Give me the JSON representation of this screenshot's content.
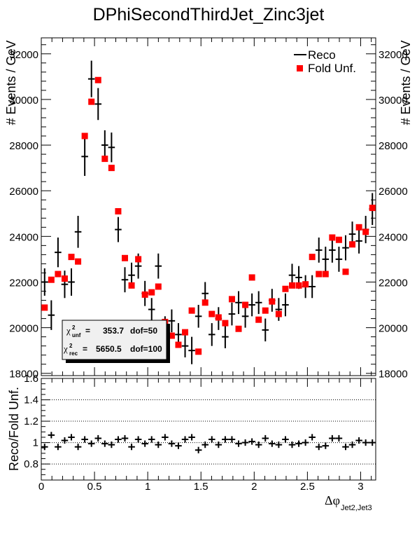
{
  "chart_data": [
    {
      "type": "scatter",
      "title": "DPhiSecondThirdJet_Zinc3jet",
      "ylabel": "# Events / GeV",
      "ylabel_right": "# Events / GeV",
      "xlim": [
        0,
        3.1416
      ],
      "ylim": [
        17900,
        32700
      ],
      "x_ticks": [
        "0",
        "0.5",
        "1",
        "1.5",
        "2",
        "2.5",
        "3"
      ],
      "y_ticks": [
        "18000",
        "20000",
        "22000",
        "24000",
        "26000",
        "28000",
        "30000",
        "32000"
      ],
      "legend": {
        "position": "top-right",
        "entries": [
          "Reco",
          "Fold Unf."
        ]
      },
      "series": [
        {
          "name": "Reco",
          "style": "points-with-error-bars",
          "color": "#000000",
          "y": [
            22000,
            20550,
            23300,
            21900,
            22000,
            24200,
            27500,
            30900,
            29800,
            28000,
            27900,
            24300,
            22100,
            22300,
            22700,
            21500,
            20800,
            22700,
            20000,
            20300,
            19700,
            19200,
            19000,
            20500,
            21500,
            19700,
            20400,
            19600,
            20600,
            21100,
            20500,
            21000,
            21100,
            19900,
            21200,
            20800,
            21000,
            22300,
            22200,
            21800,
            21800,
            23400,
            23000,
            23400,
            23000,
            23500,
            24100,
            23800,
            24300,
            25200
          ],
          "err": [
            600,
            650,
            650,
            600,
            600,
            700,
            850,
            800,
            700,
            650,
            650,
            550,
            550,
            550,
            550,
            550,
            500,
            550,
            500,
            500,
            500,
            500,
            600,
            500,
            500,
            500,
            500,
            500,
            500,
            500,
            500,
            500,
            500,
            500,
            500,
            500,
            500,
            500,
            500,
            500,
            500,
            550,
            550,
            550,
            550,
            550,
            550,
            550,
            600,
            700
          ]
        },
        {
          "name": "Fold Unf.",
          "style": "red-squares",
          "color": "#ff0000",
          "y": [
            20880,
            22100,
            22350,
            22150,
            23100,
            22900,
            28400,
            29900,
            30850,
            27400,
            27000,
            25100,
            23050,
            21850,
            23000,
            21450,
            21550,
            21800,
            20250,
            19650,
            19250,
            19800,
            20750,
            18950,
            21100,
            20600,
            20450,
            20200,
            21250,
            19950,
            21000,
            22200,
            20350,
            20750,
            21150,
            20600,
            21700,
            21850,
            21850,
            21900,
            23100,
            22350,
            22350,
            23950,
            23850,
            22450,
            23650,
            24400,
            24200,
            25250
          ]
        }
      ],
      "stats_box": {
        "row1": {
          "symbol": "χ",
          "sub": "unf",
          "sup": "2",
          "eq": "=",
          "value": "353.7",
          "dof": "dof=50"
        },
        "row2": {
          "symbol": "χ",
          "sub": "rec",
          "sup": "2",
          "eq": "=",
          "value": "5650.5",
          "dof": "dof=100"
        }
      }
    },
    {
      "type": "scatter",
      "xlabel": {
        "main": "Δφ",
        "sub": "Jet2,Jet3"
      },
      "ylabel": "Reco/Fold Unf.",
      "xlim": [
        0,
        3.1416
      ],
      "ylim": [
        0.65,
        1.6
      ],
      "x_ticks": [
        "0",
        "0.5",
        "1",
        "1.5",
        "2",
        "2.5",
        "3"
      ],
      "y_ticks": [
        "0.8",
        "1",
        "1.2",
        "1.4",
        "1.6"
      ],
      "grid_y": [
        0.8,
        1.0,
        1.2,
        1.4,
        1.6
      ],
      "series": [
        {
          "name": "",
          "color": "#000000",
          "y": [
            0.96,
            1.07,
            0.96,
            1.02,
            1.05,
            0.96,
            1.03,
            0.99,
            1.04,
            0.99,
            0.98,
            1.03,
            1.04,
            0.96,
            1.03,
            0.99,
            1.03,
            0.98,
            1.05,
            0.99,
            0.97,
            1.03,
            1.05,
            0.93,
            0.98,
            1.03,
            0.98,
            1.03,
            1.03,
            0.99,
            1.0,
            1.01,
            0.98,
            1.04,
            0.99,
            0.98,
            1.03,
            0.98,
            0.99,
            1.0,
            1.05,
            0.96,
            0.97,
            1.04,
            1.04,
            0.96,
            0.98,
            1.02,
            1.0,
            1.0
          ],
          "err": [
            0.03,
            0.03,
            0.03,
            0.03,
            0.03,
            0.03,
            0.03,
            0.03,
            0.03,
            0.03,
            0.03,
            0.03,
            0.03,
            0.03,
            0.03,
            0.03,
            0.03,
            0.03,
            0.03,
            0.03,
            0.03,
            0.03,
            0.03,
            0.03,
            0.03,
            0.03,
            0.03,
            0.03,
            0.03,
            0.03,
            0.03,
            0.03,
            0.03,
            0.03,
            0.03,
            0.03,
            0.03,
            0.03,
            0.03,
            0.03,
            0.03,
            0.03,
            0.03,
            0.03,
            0.03,
            0.03,
            0.03,
            0.03,
            0.03,
            0.03
          ]
        }
      ]
    }
  ]
}
